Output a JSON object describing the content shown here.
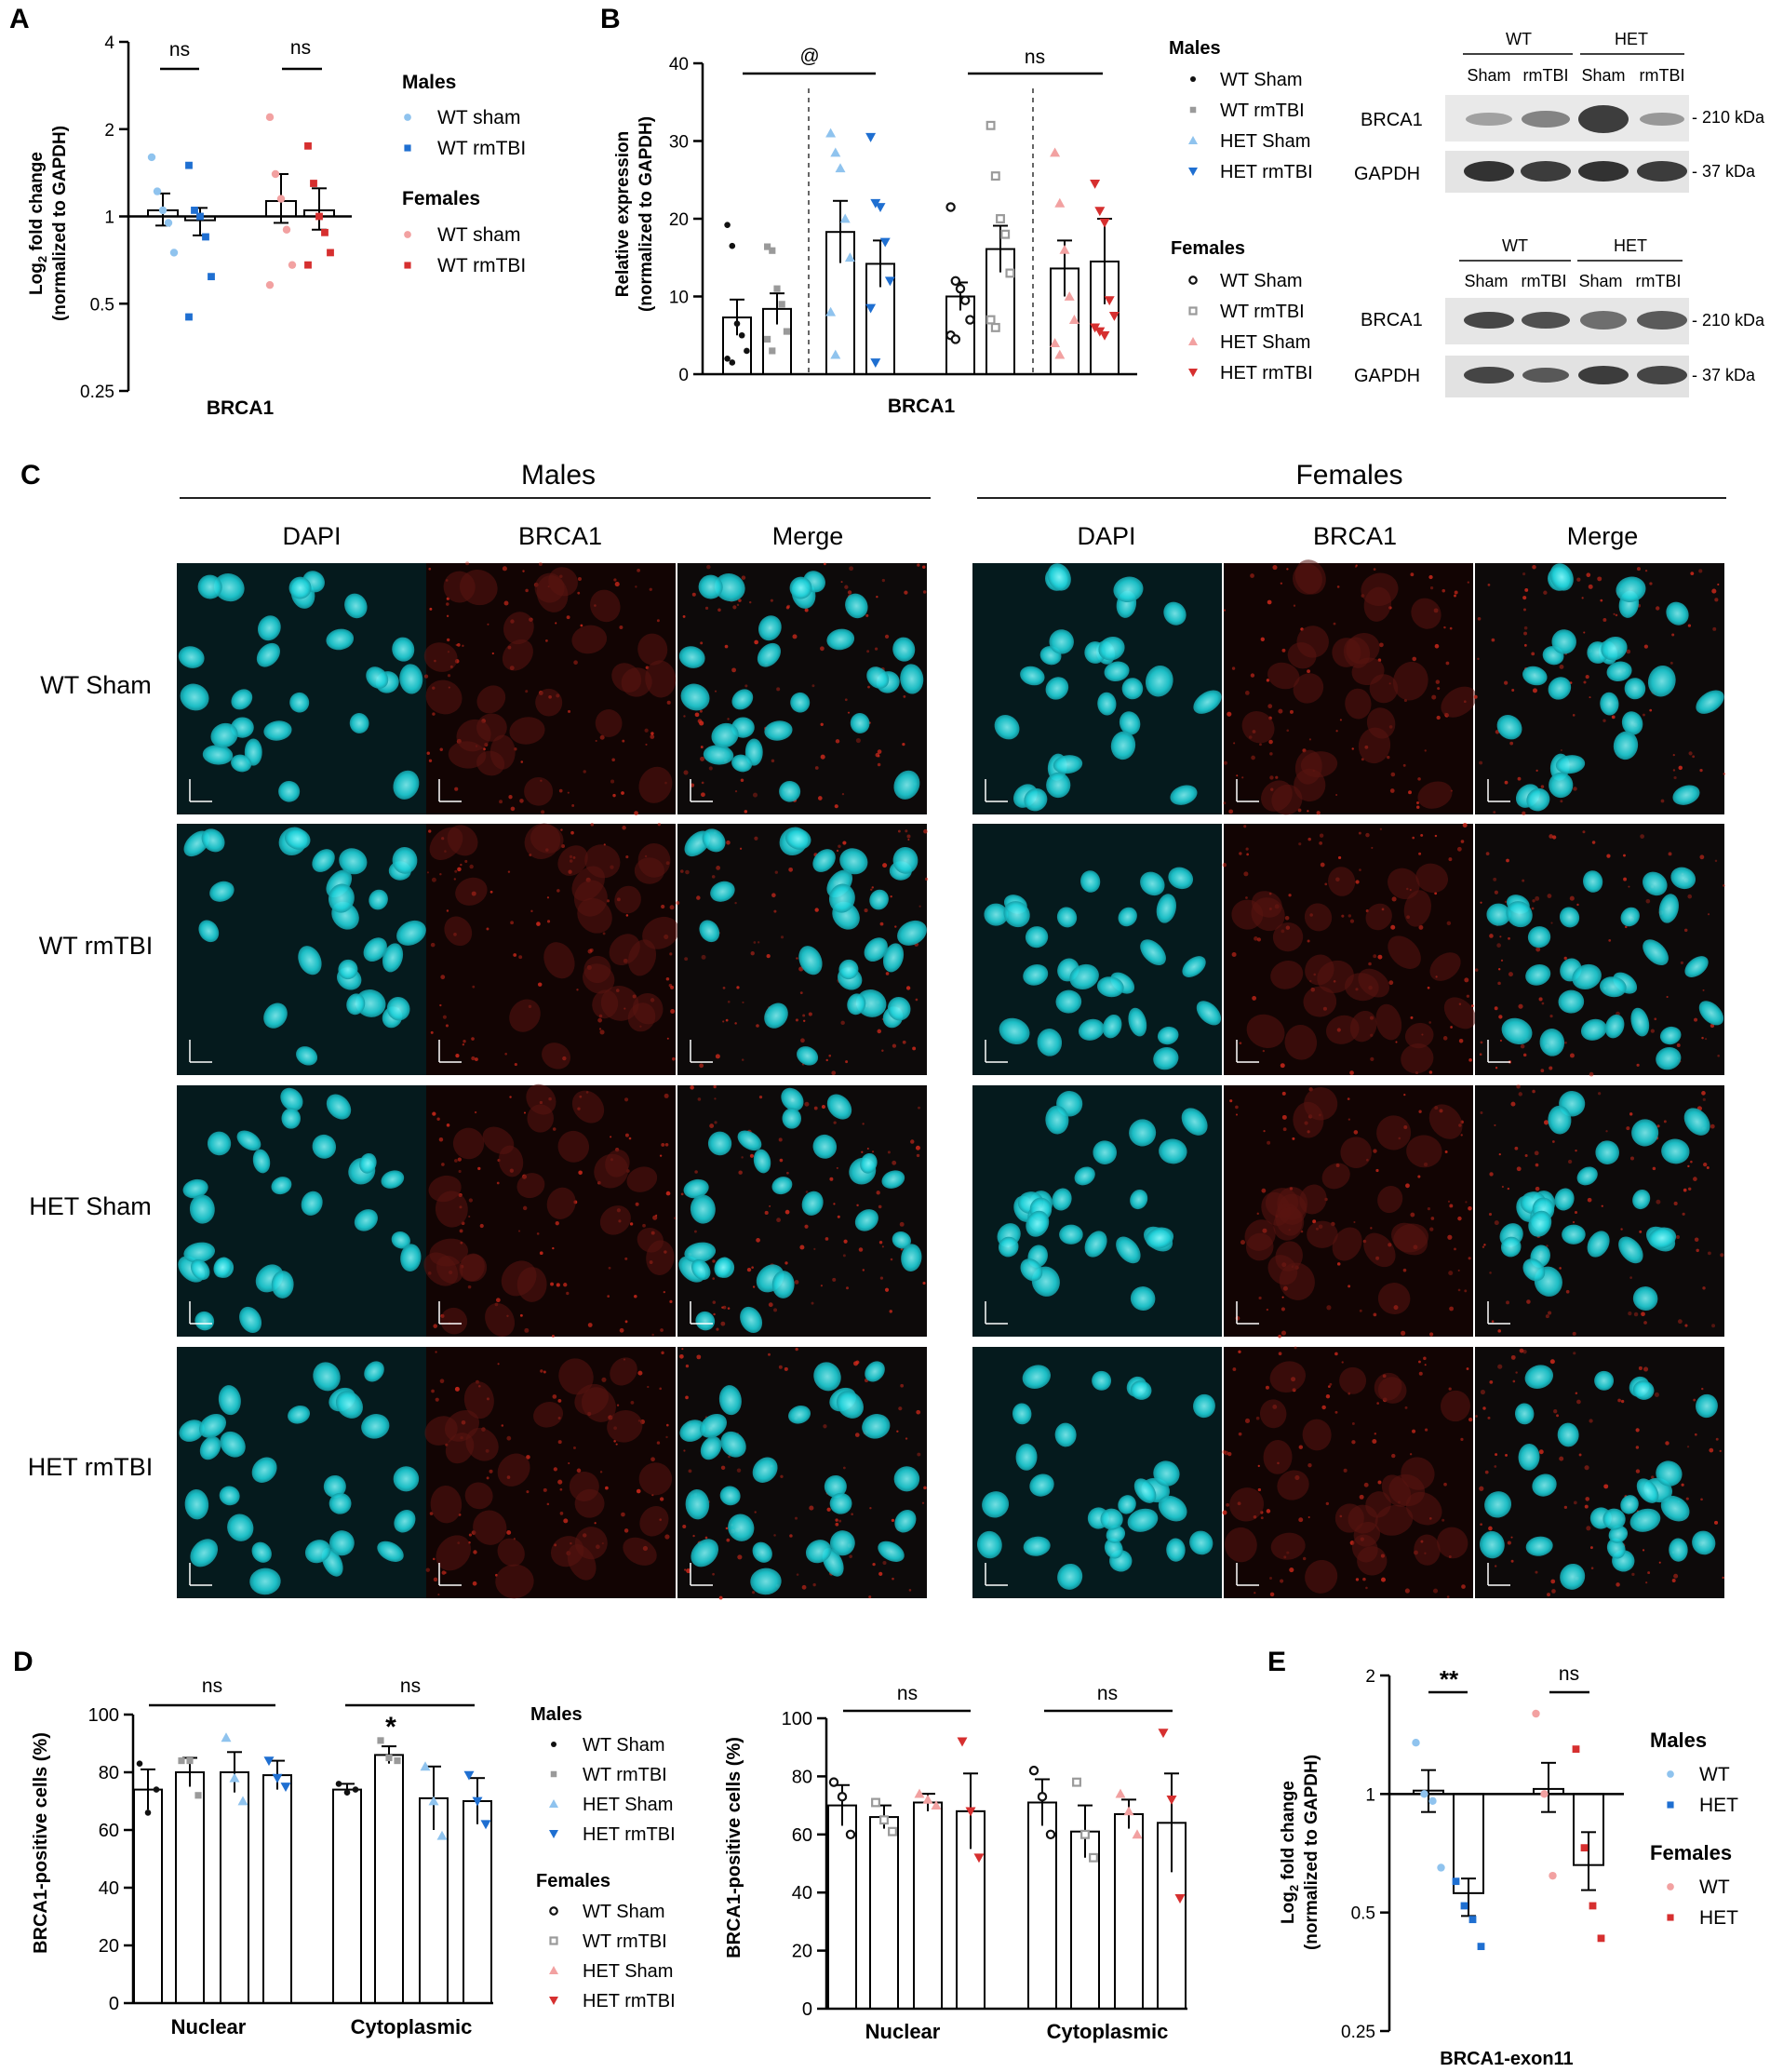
{
  "palette": {
    "wt_male": "#8fc3ee",
    "het_male": "#1f6fd1",
    "wt_female": "#f2a1a1",
    "het_female": "#d62f2f",
    "grey": "#9a9a9a",
    "dapi": "#1fd6de",
    "brca1_stain": "#e0241c"
  },
  "panel_letters": [
    "A",
    "B",
    "C",
    "D",
    "E"
  ],
  "kda": {
    "k210": "- 210 kDa",
    "k37": "- 37 kDa"
  },
  "panel_a": {
    "letter": "A",
    "chart_data": {
      "type": "scatter",
      "xlabel": "BRCA1",
      "ylabel_main": "Log",
      "ylabel_sub": "2",
      "ylabel_rest": " fold change",
      "ylabel2": "(normalized to GAPDH)",
      "yscale": "log2",
      "ylim": [
        0.25,
        4
      ],
      "yticks": [
        {
          "v": 0.25,
          "label": "0.25"
        },
        {
          "v": 0.5,
          "label": "0.5"
        },
        {
          "v": 1,
          "label": "1"
        },
        {
          "v": 2,
          "label": "2"
        },
        {
          "v": 4,
          "label": "4"
        }
      ],
      "baseline": 1,
      "groups": [
        {
          "key": "wt_sham",
          "color": "wt_male",
          "marker": "circle",
          "mean": 1.05,
          "sem": [
            0.93,
            1.2
          ],
          "points": [
            1.6,
            1.22,
            1.05,
            0.95,
            0.75
          ]
        },
        {
          "key": "wt_rmtbi",
          "color": "het_male",
          "marker": "square",
          "mean": 0.97,
          "sem": [
            0.86,
            1.07
          ],
          "points": [
            1.5,
            1.05,
            1.0,
            0.85,
            0.62,
            0.45
          ]
        },
        {
          "key": "het_sham",
          "color": "wt_female",
          "marker": "circle",
          "mean": 1.13,
          "sem": [
            0.95,
            1.4
          ],
          "points": [
            2.2,
            1.4,
            1.15,
            0.9,
            0.68,
            0.58
          ]
        },
        {
          "key": "het_rmtbi",
          "color": "het_female",
          "marker": "square",
          "mean": 1.05,
          "sem": [
            0.9,
            1.25
          ],
          "points": [
            1.75,
            1.3,
            1.0,
            0.88,
            0.75,
            0.68
          ]
        }
      ],
      "sig": [
        {
          "label": "ns"
        },
        {
          "label": "ns"
        }
      ]
    },
    "legend": {
      "males_title": "Males",
      "males": [
        {
          "label": "WT sham",
          "color": "wt_male",
          "marker": "circle"
        },
        {
          "label": "WT rmTBI",
          "color": "het_male",
          "marker": "square"
        }
      ],
      "females_title": "Females",
      "females": [
        {
          "label": "WT sham",
          "color": "wt_female",
          "marker": "circle"
        },
        {
          "label": "WT rmTBI",
          "color": "het_female",
          "marker": "square"
        }
      ]
    }
  },
  "panel_b": {
    "letter": "B",
    "chart_data": {
      "type": "bar",
      "xlabel": "BRCA1",
      "ylabel": "Relative expression",
      "ylabel2": "(normalized to GAPDH)",
      "ylim": [
        0,
        40
      ],
      "yticks": [
        0,
        10,
        20,
        30,
        40
      ],
      "series": [
        {
          "key": "m_wt_sham",
          "color": "#111111",
          "marker": "dot",
          "mean": 7.3,
          "sem": 2.3,
          "points": [
            19.2,
            16.5,
            6.5,
            5.0,
            3.0,
            2.0,
            1.5
          ]
        },
        {
          "key": "m_wt_rmtbi",
          "color": "grey",
          "marker": "square",
          "mean": 8.4,
          "sem": 2.0,
          "points": [
            16.4,
            15.9,
            11.0,
            9.0,
            5.5,
            4.5,
            3.0
          ]
        },
        {
          "key": "m_het_sham",
          "color": "wt_male",
          "marker": "triangle-up",
          "mean": 18.3,
          "sem": 4.0,
          "points": [
            31.0,
            28.5,
            26.5,
            20.0,
            15.0,
            8.0,
            2.5
          ]
        },
        {
          "key": "m_het_rmtbi",
          "color": "het_male",
          "marker": "triangle-down",
          "mean": 14.2,
          "sem": 3.0,
          "points": [
            30.5,
            22.0,
            21.5,
            17.0,
            12.0,
            8.5,
            1.5
          ]
        },
        {
          "key": "f_wt_sham",
          "color": "#111111",
          "marker": "ring",
          "mean": 10.0,
          "sem": 1.8,
          "points": [
            21.5,
            12.0,
            11.0,
            9.5,
            7.0,
            5.0,
            4.5
          ]
        },
        {
          "key": "f_wt_rmtbi",
          "color": "grey",
          "marker": "square-open",
          "mean": 16.1,
          "sem": 3.0,
          "points": [
            32.0,
            25.5,
            20.0,
            18.0,
            13.0,
            7.0,
            6.0
          ]
        },
        {
          "key": "f_het_sham",
          "color": "wt_female",
          "marker": "triangle-up",
          "mean": 13.6,
          "sem": 3.6,
          "points": [
            28.5,
            22.0,
            16.0,
            10.0,
            7.0,
            4.0,
            2.5
          ]
        },
        {
          "key": "f_het_rmtbi",
          "color": "het_female",
          "marker": "triangle-down",
          "mean": 14.5,
          "sem": 5.5,
          "points": [
            24.5,
            21.0,
            19.5,
            9.5,
            7.5,
            6.0,
            5.5,
            5.0
          ]
        }
      ],
      "sig": [
        {
          "label": "@"
        },
        {
          "label": "ns"
        }
      ]
    },
    "legend": {
      "males_title": "Males",
      "males": [
        {
          "label": "WT Sham",
          "color": "#111111",
          "marker": "dot"
        },
        {
          "label": "WT rmTBI",
          "color": "grey",
          "marker": "square"
        },
        {
          "label": "HET Sham",
          "color": "wt_male",
          "marker": "triangle-up"
        },
        {
          "label": "HET rmTBI",
          "color": "het_male",
          "marker": "triangle-down"
        }
      ],
      "females_title": "Females",
      "females": [
        {
          "label": "WT Sham",
          "color": "#111111",
          "marker": "ring"
        },
        {
          "label": "WT rmTBI",
          "color": "grey",
          "marker": "square-open"
        },
        {
          "label": "HET Sham",
          "color": "wt_female",
          "marker": "triangle-up"
        },
        {
          "label": "HET rmTBI",
          "color": "het_female",
          "marker": "triangle-down"
        }
      ]
    },
    "blot_male": {
      "wt": "WT",
      "het": "HET",
      "lanes": [
        "Sham",
        "rmTBI",
        "Sham",
        "rmTBI"
      ],
      "row1": "BRCA1",
      "row2": "GAPDH"
    },
    "blot_female": {
      "wt": "WT",
      "het": "HET",
      "lanes": [
        "Sham",
        "rmTBI",
        "Sham",
        "rmTBI"
      ],
      "row1": "BRCA1",
      "row2": "GAPDH"
    }
  },
  "panel_c": {
    "letter": "C",
    "males": "Males",
    "females": "Females",
    "columns": [
      "DAPI",
      "BRCA1",
      "Merge"
    ],
    "rows": [
      "WT Sham",
      "WT rmTBI",
      "HET Sham",
      "HET rmTBI"
    ]
  },
  "panel_d": {
    "letter": "D",
    "charts": [
      {
        "type": "bar",
        "ylabel": "BRCA1-positive cells  (%)",
        "ylim": [
          0,
          100
        ],
        "yticks": [
          0,
          20,
          40,
          60,
          80,
          100
        ],
        "categories": [
          "Nuclear",
          "Cytoplasmic"
        ],
        "series": [
          {
            "key": "wt_sham",
            "color": "#111111",
            "marker": "dot",
            "values": [
              74,
              74
            ],
            "sem": [
              7,
              2
            ],
            "points": [
              [
                83,
                66,
                74
              ],
              [
                76,
                73,
                74
              ]
            ]
          },
          {
            "key": "wt_rmtbi",
            "color": "grey",
            "marker": "square",
            "values": [
              80,
              86
            ],
            "sem": [
              5,
              3
            ],
            "points": [
              [
                84,
                84,
                72
              ],
              [
                91,
                85,
                84
              ]
            ]
          },
          {
            "key": "het_sham",
            "color": "wt_male",
            "marker": "triangle-up",
            "values": [
              80,
              71
            ],
            "sem": [
              7,
              11
            ],
            "points": [
              [
                92,
                78,
                70
              ],
              [
                82,
                70,
                58
              ]
            ]
          },
          {
            "key": "het_rmtbi",
            "color": "het_male",
            "marker": "triangle-down",
            "values": [
              79,
              70
            ],
            "sem": [
              5,
              8
            ],
            "points": [
              [
                84,
                78,
                75
              ],
              [
                79,
                70,
                62
              ]
            ]
          }
        ],
        "sig": [
          {
            "label": "ns"
          },
          {
            "label": "ns"
          }
        ],
        "star": "*"
      },
      {
        "type": "bar",
        "ylabel": "BRCA1-positive cells  (%)",
        "ylim": [
          0,
          100
        ],
        "yticks": [
          0,
          20,
          40,
          60,
          80,
          100
        ],
        "categories": [
          "Nuclear",
          "Cytoplasmic"
        ],
        "series": [
          {
            "key": "wt_sham",
            "color": "#111111",
            "marker": "ring",
            "values": [
              70,
              71
            ],
            "sem": [
              7,
              8
            ],
            "points": [
              [
                78,
                73,
                60
              ],
              [
                82,
                73,
                60
              ]
            ]
          },
          {
            "key": "wt_rmtbi",
            "color": "grey",
            "marker": "square-open",
            "values": [
              66,
              61
            ],
            "sem": [
              4,
              9
            ],
            "points": [
              [
                71,
                65,
                61
              ],
              [
                78,
                60,
                52
              ]
            ]
          },
          {
            "key": "het_sham",
            "color": "wt_female",
            "marker": "triangle-up",
            "values": [
              71,
              67
            ],
            "sem": [
              3,
              5
            ],
            "points": [
              [
                74,
                72,
                70
              ],
              [
                74,
                68,
                60
              ]
            ]
          },
          {
            "key": "het_rmtbi",
            "color": "het_female",
            "marker": "triangle-down",
            "values": [
              68,
              64
            ],
            "sem": [
              13,
              17
            ],
            "points": [
              [
                92,
                68,
                52
              ],
              [
                95,
                72,
                38
              ]
            ]
          }
        ],
        "sig": [
          {
            "label": "ns"
          },
          {
            "label": "ns"
          }
        ]
      }
    ],
    "legend": {
      "males_title": "Males",
      "males": [
        {
          "label": "WT Sham",
          "color": "#111111",
          "marker": "dot"
        },
        {
          "label": "WT rmTBI",
          "color": "grey",
          "marker": "square"
        },
        {
          "label": "HET Sham",
          "color": "wt_male",
          "marker": "triangle-up"
        },
        {
          "label": "HET rmTBI",
          "color": "het_male",
          "marker": "triangle-down"
        }
      ],
      "females_title": "Females",
      "females": [
        {
          "label": "WT Sham",
          "color": "#111111",
          "marker": "ring"
        },
        {
          "label": "WT rmTBI",
          "color": "grey",
          "marker": "square-open"
        },
        {
          "label": "HET Sham",
          "color": "wt_female",
          "marker": "triangle-up"
        },
        {
          "label": "HET rmTBI",
          "color": "het_female",
          "marker": "triangle-down"
        }
      ]
    }
  },
  "panel_e": {
    "letter": "E",
    "chart_data": {
      "type": "bar",
      "xlabel": "BRCA1-exon11",
      "ylabel_main": "Log",
      "ylabel_sub": "2",
      "ylabel_rest": " fold change",
      "ylabel2": "(normalized to GAPDH)",
      "yscale": "log2",
      "ylim": [
        0.25,
        2
      ],
      "yticks": [
        {
          "v": 0.25,
          "label": "0.25"
        },
        {
          "v": 0.5,
          "label": "0.5"
        },
        {
          "v": 1,
          "label": "1"
        },
        {
          "v": 2,
          "label": "2"
        }
      ],
      "baseline": 1,
      "series": [
        {
          "key": "m_wt",
          "color": "wt_male",
          "marker": "circle",
          "mean": 1.02,
          "sem": [
            0.9,
            1.15
          ],
          "points": [
            1.35,
            1.0,
            0.96,
            0.65
          ]
        },
        {
          "key": "m_het",
          "color": "het_male",
          "marker": "square",
          "mean": 0.56,
          "sem": [
            0.49,
            0.61
          ],
          "points": [
            0.6,
            0.52,
            0.48,
            0.41
          ]
        },
        {
          "key": "f_wt",
          "color": "wt_female",
          "marker": "circle",
          "mean": 1.03,
          "sem": [
            0.9,
            1.2
          ],
          "points": [
            1.6,
            1.0,
            0.62
          ]
        },
        {
          "key": "f_het",
          "color": "het_female",
          "marker": "square",
          "mean": 0.66,
          "sem": [
            0.57,
            0.8
          ],
          "points": [
            1.3,
            0.73,
            0.52,
            0.43
          ]
        }
      ],
      "sig": [
        {
          "label": "**"
        },
        {
          "label": "ns"
        }
      ]
    },
    "legend": {
      "males_title": "Males",
      "males": [
        {
          "label": "WT",
          "color": "wt_male",
          "marker": "circle"
        },
        {
          "label": "HET",
          "color": "het_male",
          "marker": "square"
        }
      ],
      "females_title": "Females",
      "females": [
        {
          "label": "WT",
          "color": "wt_female",
          "marker": "circle"
        },
        {
          "label": "HET",
          "color": "het_female",
          "marker": "square"
        }
      ]
    }
  }
}
